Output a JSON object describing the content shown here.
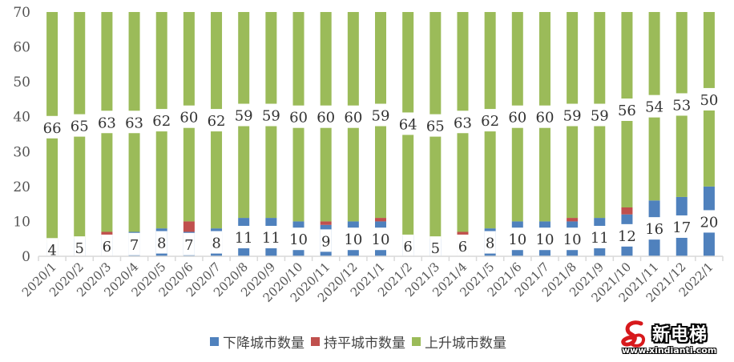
{
  "chart_data": {
    "type": "bar",
    "stacked": true,
    "title": "",
    "xlabel": "",
    "ylabel": "",
    "ylim": [
      0,
      70
    ],
    "yticks": [
      0,
      10,
      20,
      30,
      40,
      50,
      60,
      70
    ],
    "grid": false,
    "legend_position": "bottom",
    "categories": [
      "2020/1",
      "2020/2",
      "2020/3",
      "2020/4",
      "2020/5",
      "2020/6",
      "2020/7",
      "2020/8",
      "2020/9",
      "2020/10",
      "2020/11",
      "2020/12",
      "2021/1",
      "2021/2",
      "2021/3",
      "2021/4",
      "2021/5",
      "2021/6",
      "2021/7",
      "2021/8",
      "2021/9",
      "2021/10",
      "2021/11",
      "2021/12",
      "2022/1"
    ],
    "series": [
      {
        "name": "下降城市数量",
        "color": "#4F81BD",
        "show_labels": true,
        "values": [
          4,
          5,
          6,
          7,
          8,
          7,
          8,
          11,
          11,
          10,
          9,
          10,
          10,
          6,
          5,
          6,
          8,
          10,
          10,
          10,
          11,
          12,
          16,
          17,
          20
        ]
      },
      {
        "name": "持平城市数量",
        "color": "#C0504D",
        "show_labels": false,
        "values": [
          0,
          0,
          1,
          0,
          0,
          3,
          0,
          0,
          0,
          0,
          1,
          0,
          1,
          0,
          0,
          1,
          0,
          0,
          0,
          1,
          0,
          2,
          0,
          0,
          0
        ]
      },
      {
        "name": "上升城市数量",
        "color": "#9BBB59",
        "show_labels": true,
        "values": [
          66,
          65,
          63,
          63,
          62,
          60,
          62,
          59,
          59,
          60,
          60,
          60,
          59,
          64,
          65,
          63,
          62,
          60,
          60,
          59,
          59,
          56,
          54,
          53,
          50
        ]
      }
    ]
  },
  "legend": {
    "items": [
      {
        "label": "下降城市数量",
        "color": "#4F81BD"
      },
      {
        "label": "持平城市数量",
        "color": "#C0504D"
      },
      {
        "label": "上升城市数量",
        "color": "#9BBB59"
      }
    ]
  },
  "watermark": {
    "title": "新电梯",
    "url": "www.xindianti.com",
    "logo_color": "#D7191C"
  }
}
